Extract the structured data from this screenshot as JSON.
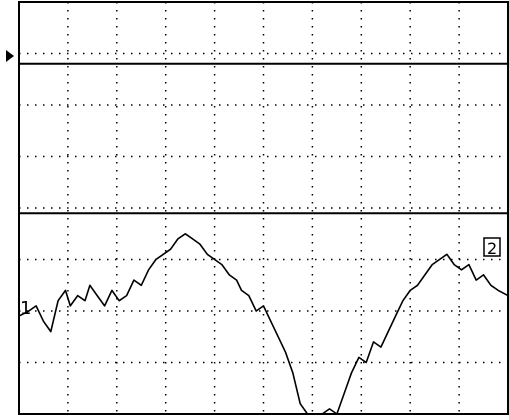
{
  "display": {
    "background": "#ffffff",
    "trace_color": "#000000",
    "grid_color": "#000000",
    "grid": true,
    "grid_divisions": {
      "x": 10,
      "y": 8
    }
  },
  "markers": {
    "channel1_label": "1",
    "channel2_badge": "2",
    "trigger_icon": "triangle-right-icon"
  },
  "chart_data": {
    "type": "line",
    "xlim": [
      0,
      10
    ],
    "ylim": [
      -4,
      4
    ],
    "series": [
      {
        "x": [
          0,
          10
        ],
        "y": [
          2.8,
          2.8
        ]
      },
      {
        "x": [
          0,
          10
        ],
        "y": [
          -0.1,
          -0.1
        ]
      },
      {
        "x": [
          0.0,
          0.2,
          0.35,
          0.5,
          0.65,
          0.8,
          0.95,
          1.05,
          1.2,
          1.35,
          1.45,
          1.6,
          1.75,
          1.9,
          2.05,
          2.2,
          2.35,
          2.5,
          2.65,
          2.8,
          2.95,
          3.1,
          3.25,
          3.4,
          3.55,
          3.7,
          3.85,
          4.0,
          4.15,
          4.3,
          4.45,
          4.55,
          4.7,
          4.85,
          5.0,
          5.15,
          5.3,
          5.45,
          5.6,
          5.75,
          5.9,
          6.05,
          6.2,
          6.35,
          6.5,
          6.65,
          6.8,
          6.95,
          7.1,
          7.25,
          7.4,
          7.55,
          7.7,
          7.85,
          8.0,
          8.15,
          8.3,
          8.45,
          8.6,
          8.75,
          8.9,
          9.05,
          9.2,
          9.35,
          9.5,
          9.65,
          9.8,
          10.0
        ],
        "y": [
          -2.1,
          -2.0,
          -1.9,
          -2.2,
          -2.4,
          -1.8,
          -1.6,
          -1.9,
          -1.7,
          -1.8,
          -1.5,
          -1.7,
          -1.9,
          -1.6,
          -1.8,
          -1.7,
          -1.4,
          -1.5,
          -1.2,
          -1.0,
          -0.9,
          -0.8,
          -0.6,
          -0.5,
          -0.6,
          -0.7,
          -0.9,
          -1.0,
          -1.1,
          -1.3,
          -1.4,
          -1.6,
          -1.7,
          -2.0,
          -1.9,
          -2.2,
          -2.5,
          -2.8,
          -3.2,
          -3.8,
          -4.0,
          -4.0,
          -4.0,
          -3.9,
          -4.0,
          -3.6,
          -3.2,
          -2.9,
          -3.0,
          -2.6,
          -2.7,
          -2.4,
          -2.1,
          -1.8,
          -1.6,
          -1.5,
          -1.3,
          -1.1,
          -1.0,
          -0.9,
          -1.1,
          -1.2,
          -1.1,
          -1.4,
          -1.3,
          -1.5,
          -1.6,
          -1.7
        ]
      }
    ]
  }
}
